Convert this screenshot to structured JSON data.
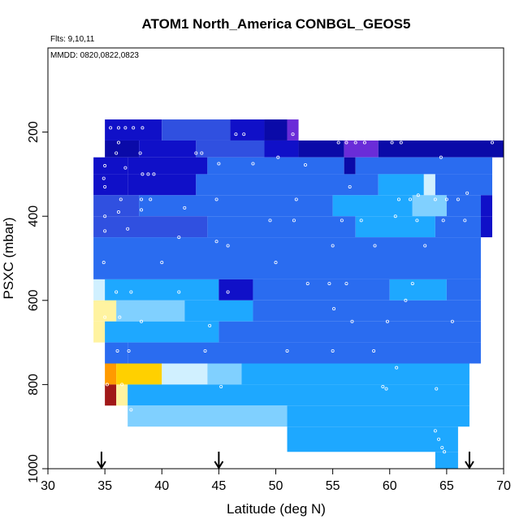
{
  "chart_data": {
    "type": "heatmap",
    "title": "ATOM1 North_America CONBGL_GEOS5",
    "notes": {
      "flights": "Flts: 9,10,11",
      "dates": "MMDD: 0820,0822,0823"
    },
    "xlabel": "Latitude (deg N)",
    "ylabel": "PSXC (mbar)",
    "xlim": [
      30,
      70
    ],
    "ylim": [
      1000,
      0
    ],
    "y_reversed": true,
    "x_ticks": [
      30,
      35,
      40,
      45,
      50,
      55,
      60,
      65,
      70
    ],
    "y_ticks": [
      200,
      400,
      600,
      800,
      1000
    ],
    "grid": false,
    "cell_size": {
      "lat": 1,
      "pressure": 50
    },
    "colors": {
      "dark_blue": "#1010c8",
      "navy": "#0a0aa8",
      "purple": "#6a2cd8",
      "mid_blue": "#3050e0",
      "royal_blue": "#2a6cf0",
      "sky_blue": "#1ea8ff",
      "light_blue": "#80d0ff",
      "pale_blue": "#d0f0ff",
      "pale_yellow": "#fff3a0",
      "yellow": "#ffd000",
      "orange": "#ff9a00",
      "dark_red": "#a01818"
    },
    "cells": [
      {
        "lat": 35,
        "lat_end": 40,
        "p": 170,
        "p_end": 220,
        "c": "dark_blue"
      },
      {
        "lat": 40,
        "lat_end": 46,
        "p": 170,
        "p_end": 220,
        "c": "mid_blue"
      },
      {
        "lat": 46,
        "lat_end": 49,
        "p": 170,
        "p_end": 220,
        "c": "dark_blue"
      },
      {
        "lat": 49,
        "lat_end": 51,
        "p": 170,
        "p_end": 220,
        "c": "navy"
      },
      {
        "lat": 51,
        "lat_end": 52,
        "p": 170,
        "p_end": 220,
        "c": "purple"
      },
      {
        "lat": 35,
        "lat_end": 38,
        "p": 220,
        "p_end": 260,
        "c": "navy"
      },
      {
        "lat": 38,
        "lat_end": 43,
        "p": 220,
        "p_end": 260,
        "c": "dark_blue"
      },
      {
        "lat": 43,
        "lat_end": 49,
        "p": 220,
        "p_end": 260,
        "c": "mid_blue"
      },
      {
        "lat": 49,
        "lat_end": 52,
        "p": 220,
        "p_end": 260,
        "c": "dark_blue"
      },
      {
        "lat": 52,
        "lat_end": 56,
        "p": 220,
        "p_end": 260,
        "c": "navy"
      },
      {
        "lat": 56,
        "lat_end": 59,
        "p": 220,
        "p_end": 260,
        "c": "purple"
      },
      {
        "lat": 59,
        "lat_end": 70,
        "p": 220,
        "p_end": 260,
        "c": "navy"
      },
      {
        "lat": 34,
        "lat_end": 37,
        "p": 260,
        "p_end": 300,
        "c": "dark_blue"
      },
      {
        "lat": 37,
        "lat_end": 44,
        "p": 260,
        "p_end": 300,
        "c": "dark_blue"
      },
      {
        "lat": 44,
        "lat_end": 56,
        "p": 260,
        "p_end": 300,
        "c": "royal_blue"
      },
      {
        "lat": 56,
        "lat_end": 57,
        "p": 260,
        "p_end": 300,
        "c": "navy"
      },
      {
        "lat": 57,
        "lat_end": 69,
        "p": 260,
        "p_end": 300,
        "c": "royal_blue"
      },
      {
        "lat": 34,
        "lat_end": 37,
        "p": 300,
        "p_end": 350,
        "c": "dark_blue"
      },
      {
        "lat": 37,
        "lat_end": 43,
        "p": 300,
        "p_end": 350,
        "c": "dark_blue"
      },
      {
        "lat": 43,
        "lat_end": 59,
        "p": 300,
        "p_end": 350,
        "c": "royal_blue"
      },
      {
        "lat": 59,
        "lat_end": 63,
        "p": 300,
        "p_end": 350,
        "c": "sky_blue"
      },
      {
        "lat": 63,
        "lat_end": 64,
        "p": 300,
        "p_end": 350,
        "c": "pale_blue"
      },
      {
        "lat": 64,
        "lat_end": 69,
        "p": 300,
        "p_end": 350,
        "c": "royal_blue"
      },
      {
        "lat": 34,
        "lat_end": 38,
        "p": 350,
        "p_end": 400,
        "c": "mid_blue"
      },
      {
        "lat": 38,
        "lat_end": 55,
        "p": 350,
        "p_end": 400,
        "c": "royal_blue"
      },
      {
        "lat": 55,
        "lat_end": 62,
        "p": 350,
        "p_end": 400,
        "c": "sky_blue"
      },
      {
        "lat": 62,
        "lat_end": 65,
        "p": 350,
        "p_end": 400,
        "c": "light_blue"
      },
      {
        "lat": 65,
        "lat_end": 68,
        "p": 350,
        "p_end": 400,
        "c": "royal_blue"
      },
      {
        "lat": 68,
        "lat_end": 69,
        "p": 350,
        "p_end": 400,
        "c": "dark_blue"
      },
      {
        "lat": 34,
        "lat_end": 44,
        "p": 400,
        "p_end": 450,
        "c": "mid_blue"
      },
      {
        "lat": 44,
        "lat_end": 57,
        "p": 400,
        "p_end": 450,
        "c": "royal_blue"
      },
      {
        "lat": 57,
        "lat_end": 64,
        "p": 400,
        "p_end": 450,
        "c": "sky_blue"
      },
      {
        "lat": 64,
        "lat_end": 68,
        "p": 400,
        "p_end": 450,
        "c": "royal_blue"
      },
      {
        "lat": 68,
        "lat_end": 69,
        "p": 400,
        "p_end": 450,
        "c": "dark_blue"
      },
      {
        "lat": 34,
        "lat_end": 68,
        "p": 450,
        "p_end": 500,
        "c": "royal_blue"
      },
      {
        "lat": 34,
        "lat_end": 68,
        "p": 500,
        "p_end": 550,
        "c": "royal_blue"
      },
      {
        "lat": 34,
        "lat_end": 35,
        "p": 550,
        "p_end": 600,
        "c": "pale_blue"
      },
      {
        "lat": 35,
        "lat_end": 45,
        "p": 550,
        "p_end": 600,
        "c": "sky_blue"
      },
      {
        "lat": 45,
        "lat_end": 48,
        "p": 550,
        "p_end": 600,
        "c": "dark_blue"
      },
      {
        "lat": 48,
        "lat_end": 60,
        "p": 550,
        "p_end": 600,
        "c": "royal_blue"
      },
      {
        "lat": 60,
        "lat_end": 65,
        "p": 550,
        "p_end": 600,
        "c": "sky_blue"
      },
      {
        "lat": 65,
        "lat_end": 68,
        "p": 550,
        "p_end": 600,
        "c": "royal_blue"
      },
      {
        "lat": 34,
        "lat_end": 36,
        "p": 600,
        "p_end": 650,
        "c": "pale_yellow"
      },
      {
        "lat": 36,
        "lat_end": 42,
        "p": 600,
        "p_end": 650,
        "c": "light_blue"
      },
      {
        "lat": 42,
        "lat_end": 48,
        "p": 600,
        "p_end": 650,
        "c": "sky_blue"
      },
      {
        "lat": 48,
        "lat_end": 68,
        "p": 600,
        "p_end": 650,
        "c": "royal_blue"
      },
      {
        "lat": 34,
        "lat_end": 35,
        "p": 650,
        "p_end": 700,
        "c": "pale_yellow"
      },
      {
        "lat": 35,
        "lat_end": 45,
        "p": 650,
        "p_end": 700,
        "c": "sky_blue"
      },
      {
        "lat": 45,
        "lat_end": 68,
        "p": 650,
        "p_end": 700,
        "c": "royal_blue"
      },
      {
        "lat": 35,
        "lat_end": 37,
        "p": 700,
        "p_end": 750,
        "c": "royal_blue"
      },
      {
        "lat": 37,
        "lat_end": 68,
        "p": 700,
        "p_end": 750,
        "c": "royal_blue"
      },
      {
        "lat": 35,
        "lat_end": 36,
        "p": 750,
        "p_end": 800,
        "c": "orange"
      },
      {
        "lat": 36,
        "lat_end": 40,
        "p": 750,
        "p_end": 800,
        "c": "yellow"
      },
      {
        "lat": 40,
        "lat_end": 44,
        "p": 750,
        "p_end": 800,
        "c": "pale_blue"
      },
      {
        "lat": 44,
        "lat_end": 47,
        "p": 750,
        "p_end": 800,
        "c": "light_blue"
      },
      {
        "lat": 47,
        "lat_end": 67,
        "p": 750,
        "p_end": 800,
        "c": "sky_blue"
      },
      {
        "lat": 35,
        "lat_end": 36,
        "p": 800,
        "p_end": 850,
        "c": "dark_red"
      },
      {
        "lat": 36,
        "lat_end": 37,
        "p": 800,
        "p_end": 850,
        "c": "pale_yellow"
      },
      {
        "lat": 37,
        "lat_end": 67,
        "p": 800,
        "p_end": 850,
        "c": "sky_blue"
      },
      {
        "lat": 37,
        "lat_end": 51,
        "p": 850,
        "p_end": 900,
        "c": "light_blue"
      },
      {
        "lat": 51,
        "lat_end": 67,
        "p": 850,
        "p_end": 900,
        "c": "sky_blue"
      },
      {
        "lat": 51,
        "lat_end": 66,
        "p": 900,
        "p_end": 960,
        "c": "sky_blue"
      },
      {
        "lat": 64,
        "lat_end": 66,
        "p": 960,
        "p_end": 1000,
        "c": "sky_blue"
      }
    ],
    "observations": [
      [
        35.5,
        190
      ],
      [
        36.2,
        190
      ],
      [
        36.8,
        190
      ],
      [
        37.5,
        190
      ],
      [
        38.3,
        190
      ],
      [
        46.5,
        205
      ],
      [
        47.2,
        205
      ],
      [
        51.5,
        205
      ],
      [
        36.2,
        225
      ],
      [
        55.5,
        225
      ],
      [
        56.2,
        225
      ],
      [
        57.0,
        225
      ],
      [
        57.8,
        225
      ],
      [
        60.2,
        225
      ],
      [
        61.0,
        225
      ],
      [
        69.0,
        225
      ],
      [
        36.0,
        250
      ],
      [
        38.1,
        250
      ],
      [
        43.0,
        250
      ],
      [
        43.5,
        250
      ],
      [
        50.2,
        260
      ],
      [
        64.5,
        260
      ],
      [
        35.0,
        280
      ],
      [
        36.8,
        285
      ],
      [
        38.3,
        300
      ],
      [
        38.8,
        300
      ],
      [
        39.3,
        300
      ],
      [
        45.0,
        275
      ],
      [
        48.0,
        275
      ],
      [
        52.6,
        278
      ],
      [
        34.9,
        310
      ],
      [
        35.0,
        330
      ],
      [
        36.4,
        360
      ],
      [
        38.2,
        360
      ],
      [
        39.0,
        360
      ],
      [
        44.8,
        360
      ],
      [
        51.8,
        360
      ],
      [
        56.5,
        330
      ],
      [
        60.8,
        360
      ],
      [
        61.8,
        360
      ],
      [
        62.5,
        350
      ],
      [
        64.0,
        360
      ],
      [
        65.0,
        360
      ],
      [
        66.0,
        360
      ],
      [
        66.8,
        345
      ],
      [
        35.0,
        400
      ],
      [
        36.2,
        390
      ],
      [
        38.2,
        385
      ],
      [
        42.0,
        380
      ],
      [
        49.5,
        410
      ],
      [
        51.6,
        410
      ],
      [
        55.8,
        410
      ],
      [
        57.5,
        410
      ],
      [
        60.5,
        400
      ],
      [
        62.4,
        410
      ],
      [
        64.7,
        410
      ],
      [
        66.6,
        410
      ],
      [
        35.0,
        435
      ],
      [
        37.0,
        430
      ],
      [
        41.5,
        450
      ],
      [
        44.8,
        460
      ],
      [
        45.8,
        470
      ],
      [
        55.0,
        470
      ],
      [
        58.7,
        470
      ],
      [
        63.1,
        470
      ],
      [
        34.9,
        510
      ],
      [
        40.0,
        510
      ],
      [
        50.0,
        510
      ],
      [
        52.8,
        560
      ],
      [
        54.7,
        560
      ],
      [
        56.2,
        560
      ],
      [
        62.0,
        560
      ],
      [
        36.0,
        580
      ],
      [
        37.3,
        580
      ],
      [
        41.5,
        580
      ],
      [
        45.8,
        580
      ],
      [
        55.1,
        620
      ],
      [
        61.4,
        600
      ],
      [
        35.0,
        640
      ],
      [
        36.3,
        640
      ],
      [
        38.2,
        650
      ],
      [
        44.2,
        660
      ],
      [
        56.7,
        650
      ],
      [
        59.8,
        650
      ],
      [
        65.5,
        650
      ],
      [
        36.1,
        720
      ],
      [
        37.1,
        720
      ],
      [
        43.8,
        720
      ],
      [
        51.0,
        720
      ],
      [
        55.0,
        720
      ],
      [
        58.6,
        720
      ],
      [
        60.6,
        760
      ],
      [
        34.8,
        780
      ],
      [
        35.2,
        800
      ],
      [
        36.5,
        800
      ],
      [
        45.2,
        805
      ],
      [
        59.4,
        805
      ],
      [
        59.7,
        810
      ],
      [
        64.1,
        810
      ],
      [
        37.3,
        860
      ],
      [
        64.0,
        910
      ],
      [
        64.3,
        930
      ],
      [
        64.6,
        950
      ],
      [
        64.8,
        960
      ]
    ],
    "flight_markers": [
      34.7,
      45.0,
      67.0
    ]
  }
}
